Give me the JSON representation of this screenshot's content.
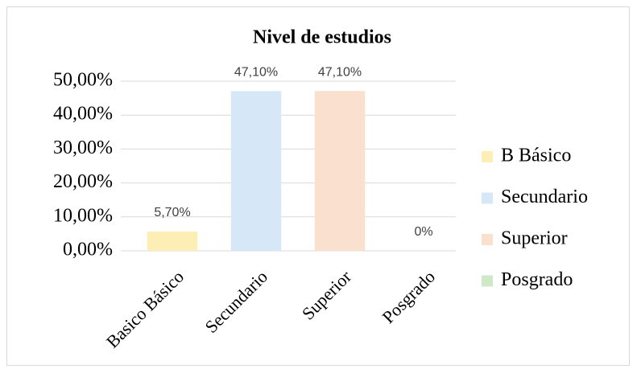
{
  "chart_data": {
    "type": "bar",
    "title": "Nivel de estudios",
    "categories": [
      "Basico Básico",
      "Secundario",
      "Superior",
      "Posgrado"
    ],
    "values": [
      5.7,
      47.1,
      47.1,
      0
    ],
    "value_labels": [
      "5,70%",
      "47,10%",
      "47,10%",
      "0%"
    ],
    "colors": [
      "#fdeeb5",
      "#d6e8f8",
      "#f9e0cf",
      "#cfe8c8"
    ],
    "legend": [
      "B  Básico",
      "Secundario",
      "Superior",
      "Posgrado"
    ],
    "ylim": [
      0,
      50
    ],
    "yticks": [
      {
        "value": 0,
        "label": "0,00%"
      },
      {
        "value": 10,
        "label": "10,00%"
      },
      {
        "value": 20,
        "label": "20,00%"
      },
      {
        "value": 30,
        "label": "30,00%"
      },
      {
        "value": 40,
        "label": "40,00%"
      },
      {
        "value": 50,
        "label": "50,00%"
      }
    ],
    "grid": true
  }
}
